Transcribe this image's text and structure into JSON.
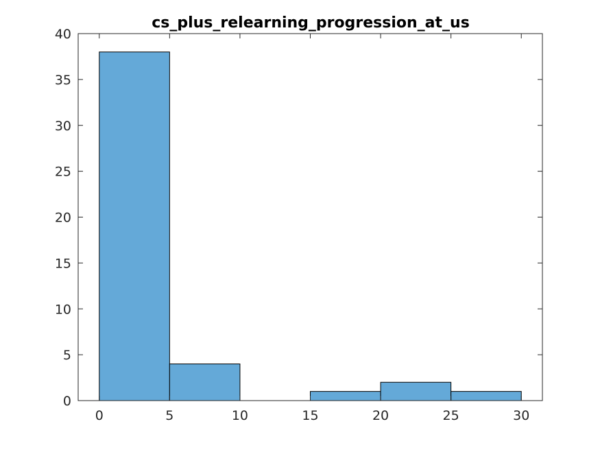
{
  "chart_data": {
    "type": "bar",
    "subtype": "histogram",
    "title": "cs_plus_relearning_progression_at_us",
    "xlabel": "",
    "ylabel": "",
    "bins": [
      {
        "start": 0,
        "end": 5,
        "count": 38
      },
      {
        "start": 5,
        "end": 10,
        "count": 4
      },
      {
        "start": 10,
        "end": 15,
        "count": 0
      },
      {
        "start": 15,
        "end": 20,
        "count": 1
      },
      {
        "start": 20,
        "end": 25,
        "count": 2
      },
      {
        "start": 25,
        "end": 30,
        "count": 1
      }
    ],
    "xlim": [
      -1.5,
      31.5
    ],
    "ylim": [
      0,
      40
    ],
    "xticks": [
      0,
      5,
      10,
      15,
      20,
      25,
      30
    ],
    "xtick_labels": [
      "0",
      "5",
      "10",
      "15",
      "20",
      "25",
      "30"
    ],
    "yticks": [
      0,
      5,
      10,
      15,
      20,
      25,
      30,
      35,
      40
    ],
    "ytick_labels": [
      "0",
      "5",
      "10",
      "15",
      "20",
      "25",
      "30",
      "35",
      "40"
    ],
    "grid": false,
    "legend": "none",
    "colors": {
      "bar_fill": "#64a9d8",
      "bar_edge": "#000000",
      "axis": "#262626",
      "title": "#000000"
    }
  }
}
